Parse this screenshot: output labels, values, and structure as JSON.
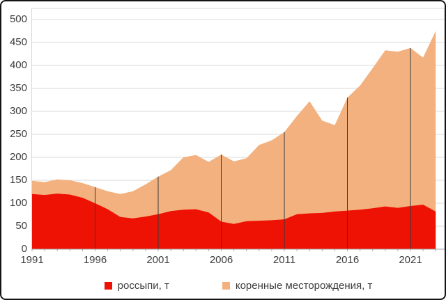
{
  "chart_data": {
    "type": "area",
    "stacked": true,
    "title": "",
    "xlabel": "",
    "ylabel": "",
    "x": [
      1991,
      1992,
      1993,
      1994,
      1995,
      1996,
      1997,
      1998,
      1999,
      2000,
      2001,
      2002,
      2003,
      2004,
      2005,
      2006,
      2007,
      2008,
      2009,
      2010,
      2011,
      2012,
      2013,
      2014,
      2015,
      2016,
      2017,
      2018,
      2019,
      2020,
      2021,
      2022,
      2023
    ],
    "series": [
      {
        "name": "россыпи, т",
        "color": "#ee1205",
        "values": [
          120,
          118,
          121,
          119,
          112,
          100,
          87,
          70,
          67,
          71,
          76,
          83,
          86,
          87,
          80,
          60,
          55,
          61,
          62,
          63,
          65,
          76,
          78,
          79,
          82,
          84,
          86,
          89,
          93,
          90,
          94,
          97,
          82
        ]
      },
      {
        "name": "коренные месторождения, т",
        "color": "#f2b17e",
        "values": [
          29,
          28,
          31,
          31,
          32,
          35,
          39,
          50,
          59,
          70,
          82,
          89,
          114,
          118,
          110,
          146,
          136,
          137,
          165,
          174,
          190,
          214,
          244,
          201,
          188,
          246,
          270,
          305,
          340,
          340,
          344,
          320,
          393
        ]
      }
    ],
    "totals_note": "stacked totals run 149 (1991) down to 120 (1998) up to 475 (2023)",
    "ylim": [
      0,
      500
    ],
    "y_ticks": [
      0,
      50,
      100,
      150,
      200,
      250,
      300,
      350,
      400,
      450,
      500
    ],
    "x_ticks": [
      1991,
      1996,
      2001,
      2006,
      2011,
      2016,
      2021
    ],
    "marker_years": [
      1996,
      2001,
      2006,
      2011,
      2016,
      2021
    ],
    "grid": "horizontal",
    "legend_position": "bottom",
    "colors": {
      "grid": "#dadada",
      "frame": "#d9d9d9",
      "axis": "#a6a6a6",
      "marker_line": "#3a3a3a",
      "tick": "#a6a6a6",
      "text": "#3d3d3d",
      "background": "#ffffff"
    }
  },
  "legend": {
    "items": [
      {
        "label": "россыпи, т"
      },
      {
        "label": "коренные месторождения, т"
      }
    ]
  }
}
